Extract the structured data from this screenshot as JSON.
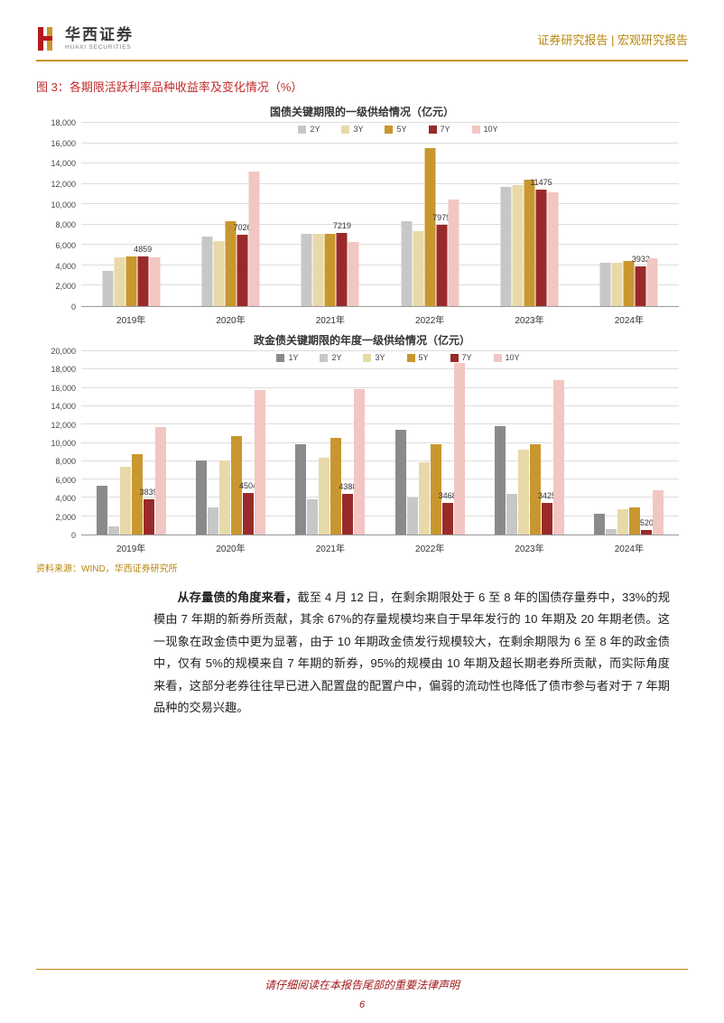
{
  "header": {
    "company_cn": "华西证券",
    "company_en": "HUAXI SECURITIES",
    "right_text": "证券研究报告 | 宏观研究报告",
    "logo_colors": {
      "red": "#b5191d",
      "gold": "#c9972f"
    }
  },
  "figure": {
    "label": "图 3：各期限活跃利率品种收益率及变化情况（%）"
  },
  "chart1": {
    "title": "国债关键期限的一级供给情况（亿元）",
    "ylim": [
      0,
      18000
    ],
    "ytick_step": 2000,
    "series": [
      "2Y",
      "3Y",
      "5Y",
      "7Y",
      "10Y"
    ],
    "series_colors": [
      "#c7c7c7",
      "#e8d9a8",
      "#c9972f",
      "#9a2a2a",
      "#f2c6c2"
    ],
    "categories": [
      "2019年",
      "2020年",
      "2021年",
      "2022年",
      "2023年",
      "2024年"
    ],
    "values": [
      [
        3500,
        4800,
        4900,
        4859,
        4800
      ],
      [
        6800,
        6400,
        8300,
        7026,
        13200
      ],
      [
        7100,
        7100,
        7100,
        7219,
        6300
      ],
      [
        8300,
        7400,
        15500,
        7979,
        10500
      ],
      [
        11700,
        11900,
        12400,
        11475,
        11200
      ],
      [
        4300,
        4300,
        4400,
        3932,
        4700
      ]
    ],
    "bar_labels": [
      {
        "group": 0,
        "bar": 3,
        "text": "4859"
      },
      {
        "group": 1,
        "bar": 3,
        "text": "7026"
      },
      {
        "group": 2,
        "bar": 3,
        "text": "7219"
      },
      {
        "group": 3,
        "bar": 3,
        "text": "7979"
      },
      {
        "group": 4,
        "bar": 3,
        "text": "11475"
      },
      {
        "group": 5,
        "bar": 3,
        "text": "3932"
      }
    ]
  },
  "chart2": {
    "title": "政金债关键期限的年度一级供给情况（亿元）",
    "ylim": [
      0,
      20000
    ],
    "ytick_step": 2000,
    "series": [
      "1Y",
      "2Y",
      "3Y",
      "5Y",
      "7Y",
      "10Y"
    ],
    "series_colors": [
      "#8a8a8a",
      "#c7c7c7",
      "#e8d9a8",
      "#c9972f",
      "#9a2a2a",
      "#f2c6c2"
    ],
    "categories": [
      "2019年",
      "2020年",
      "2021年",
      "2022年",
      "2023年",
      "2024年"
    ],
    "values": [
      [
        5300,
        900,
        7400,
        8800,
        3839,
        11700
      ],
      [
        8100,
        3000,
        8100,
        10700,
        4504,
        15800
      ],
      [
        9900,
        3800,
        8400,
        10500,
        4388,
        15900
      ],
      [
        11400,
        4000,
        7900,
        9900,
        3468,
        18700
      ],
      [
        11800,
        4400,
        9300,
        9900,
        3425,
        16800
      ],
      [
        2300,
        600,
        2800,
        3000,
        520,
        4800
      ]
    ],
    "bar_labels": [
      {
        "group": 0,
        "bar": 4,
        "text": "3839"
      },
      {
        "group": 1,
        "bar": 4,
        "text": "4504"
      },
      {
        "group": 2,
        "bar": 4,
        "text": "4388"
      },
      {
        "group": 3,
        "bar": 4,
        "text": "3468"
      },
      {
        "group": 4,
        "bar": 4,
        "text": "3425"
      },
      {
        "group": 5,
        "bar": 4,
        "text": "520"
      }
    ]
  },
  "source": "资料来源：WIND，华西证券研究所",
  "paragraph": {
    "bold_lead": "从存量债的角度来看，",
    "rest": "截至 4 月 12 日，在剩余期限处于 6 至 8 年的国债存量券中，33%的规模由 7 年期的新券所贡献，其余 67%的存量规模均来自于早年发行的 10 年期及 20 年期老债。这一现象在政金债中更为显著，由于 10 年期政金债发行规模较大，在剩余期限为 6 至 8 年的政金债中，仅有 5%的规模来自 7 年期的新券，95%的规模由 10 年期及超长期老券所贡献，而实际角度来看，这部分老券往往早已进入配置盘的配置户中，偏弱的流动性也降低了债市参与者对于 7 年期品种的交易兴趣。"
  },
  "footer": {
    "disclaimer": "请仔细阅读在本报告尾部的重要法律声明",
    "page": "6"
  },
  "style": {
    "grid_color": "#dddddd",
    "axis_color": "#999999"
  }
}
